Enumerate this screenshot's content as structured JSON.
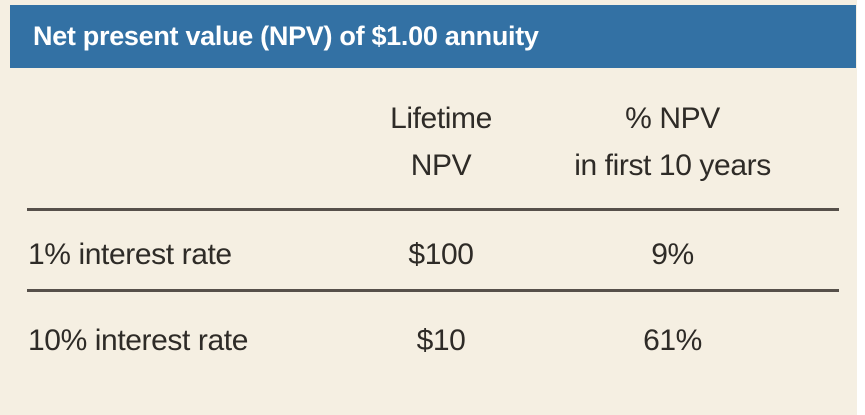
{
  "title": "Net present value (NPV) of $1.00 annuity",
  "table": {
    "header": {
      "col2": {
        "line1": "Lifetime",
        "line2": "NPV"
      },
      "col3": {
        "line1": "% NPV",
        "line2": "in first 10 years"
      }
    },
    "rows": [
      {
        "label": "1% interest rate",
        "values": [
          "$100",
          "9%"
        ]
      },
      {
        "label": "10% interest rate",
        "values": [
          "$10",
          "61%"
        ]
      }
    ]
  },
  "chart_data": {
    "type": "table",
    "title": "Net present value (NPV) of $1.00 annuity",
    "columns": [
      "",
      "Lifetime NPV",
      "% NPV in first 10 years"
    ],
    "rows": [
      [
        "1% interest rate",
        "$100",
        "9%"
      ],
      [
        "10% interest rate",
        "$10",
        "61%"
      ]
    ]
  },
  "colors": {
    "title_bar": "#3371a4",
    "title_text": "#ffffff",
    "panel_background": "#f5efe2",
    "body_text": "#2e2b27",
    "rule": "#56504a"
  }
}
